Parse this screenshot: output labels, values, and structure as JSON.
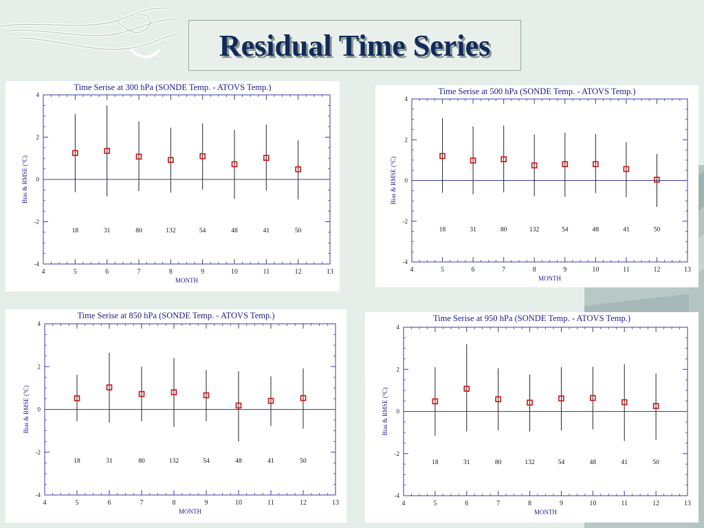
{
  "slide": {
    "title": "Residual Time Series",
    "accent_color": "#102a5a",
    "background_color": "#e6eeea"
  },
  "chart_data": [
    {
      "type": "scatter",
      "title": "Time Serise at 300 hPa (SONDE Temp. - ATOVS Temp.)",
      "xlabel": "MONTH",
      "ylabel": "Bias & RMSE (°C)",
      "xlim": [
        4,
        13
      ],
      "ylim": [
        -4,
        4
      ],
      "x": [
        5,
        6,
        7,
        8,
        9,
        10,
        11,
        12
      ],
      "bias": [
        1.25,
        1.35,
        1.08,
        0.92,
        1.1,
        0.72,
        1.02,
        0.48
      ],
      "upper": [
        3.1,
        3.5,
        2.75,
        2.45,
        2.65,
        2.35,
        2.6,
        1.85
      ],
      "lower": [
        -0.6,
        -0.8,
        -0.55,
        -0.62,
        -0.48,
        -0.92,
        -0.52,
        -0.95
      ],
      "counts": [
        "18",
        "31",
        "80",
        "132",
        "54",
        "48",
        "41",
        "50"
      ],
      "count_y": -2.4,
      "xticks": [
        "4",
        "5",
        "6",
        "7",
        "8",
        "9",
        "10",
        "11",
        "12",
        "13"
      ],
      "yticks": [
        "-4",
        "-2",
        "0",
        "2",
        "4"
      ]
    },
    {
      "type": "scatter",
      "title": "Time Serise at 500 hPa (SONDE Temp. - ATOVS Temp.)",
      "xlabel": "MONTH",
      "ylabel": "Bias & RMSE (°C)",
      "xlim": [
        4,
        13
      ],
      "ylim": [
        -4,
        4
      ],
      "x": [
        5,
        6,
        7,
        8,
        9,
        10,
        11,
        12
      ],
      "bias": [
        1.2,
        0.98,
        1.04,
        0.74,
        0.8,
        0.8,
        0.56,
        0.04
      ],
      "upper": [
        3.05,
        2.65,
        2.7,
        2.25,
        2.35,
        2.28,
        1.88,
        1.3
      ],
      "lower": [
        -0.6,
        -0.68,
        -0.58,
        -0.78,
        -0.8,
        -0.62,
        -0.82,
        -1.3
      ],
      "counts": [
        "18",
        "31",
        "80",
        "132",
        "54",
        "48",
        "41",
        "50"
      ],
      "count_y": -2.4,
      "xticks": [
        "4",
        "5",
        "6",
        "7",
        "8",
        "9",
        "10",
        "11",
        "12",
        "13"
      ],
      "yticks": [
        "-4",
        "-2",
        "0",
        "2",
        "4"
      ]
    },
    {
      "type": "scatter",
      "title": "Time Serise at 850 hPa (SONDE Temp. - ATOVS Temp.)",
      "xlabel": "MONTH",
      "ylabel": "Bias & RMSE (°C)",
      "xlim": [
        4,
        13
      ],
      "ylim": [
        -4,
        4
      ],
      "x": [
        5,
        6,
        7,
        8,
        9,
        10,
        11,
        12
      ],
      "bias": [
        0.52,
        1.03,
        0.72,
        0.8,
        0.66,
        0.18,
        0.4,
        0.53
      ],
      "upper": [
        1.62,
        2.65,
        2.0,
        2.4,
        1.85,
        1.78,
        1.55,
        1.92
      ],
      "lower": [
        -0.55,
        -0.62,
        -0.55,
        -0.82,
        -0.55,
        -1.5,
        -0.78,
        -0.9
      ],
      "counts": [
        "18",
        "31",
        "80",
        "132",
        "54",
        "48",
        "41",
        "50"
      ],
      "count_y": -2.4,
      "xticks": [
        "4",
        "5",
        "6",
        "7",
        "8",
        "9",
        "10",
        "11",
        "12",
        "13"
      ],
      "yticks": [
        "-4",
        "-2",
        "0",
        "2",
        "4"
      ]
    },
    {
      "type": "scatter",
      "title": "Time Serise at 950 hPa (SONDE Temp. - ATOVS Temp.)",
      "xlabel": "MONTH",
      "ylabel": "Bias & RMSE (°C)",
      "xlim": [
        4,
        13
      ],
      "ylim": [
        -4,
        4
      ],
      "x": [
        5,
        6,
        7,
        8,
        9,
        10,
        11,
        12
      ],
      "bias": [
        0.48,
        1.08,
        0.58,
        0.42,
        0.62,
        0.64,
        0.44,
        0.26
      ],
      "upper": [
        2.1,
        3.2,
        2.05,
        1.75,
        2.1,
        2.12,
        2.25,
        1.8
      ],
      "lower": [
        -1.15,
        -0.95,
        -0.9,
        -0.95,
        -0.9,
        -0.85,
        -1.4,
        -1.35
      ],
      "counts": [
        "18",
        "31",
        "80",
        "132",
        "54",
        "48",
        "41",
        "50"
      ],
      "count_y": -2.4,
      "xticks": [
        "4",
        "5",
        "6",
        "7",
        "8",
        "9",
        "10",
        "11",
        "12",
        "13"
      ],
      "yticks": [
        "-4",
        "-2",
        "0",
        "2",
        "4"
      ]
    }
  ]
}
